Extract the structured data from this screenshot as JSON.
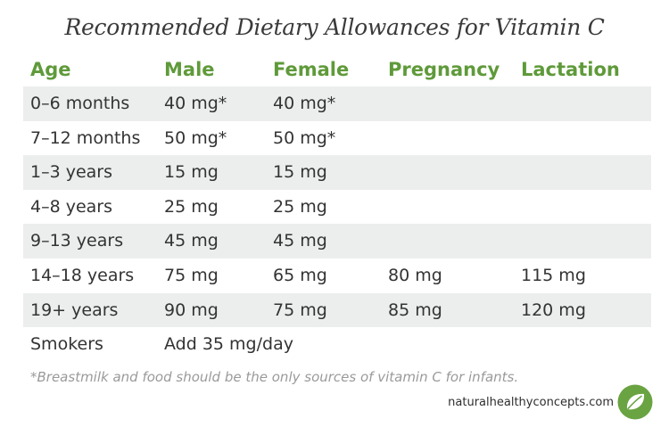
{
  "title": "Recommended Dietary Allowances for Vitamin C",
  "table": {
    "headers": [
      "Age",
      "Male",
      "Female",
      "Pregnancy",
      "Lactation"
    ],
    "rows": [
      [
        "0–6 months",
        "40 mg*",
        "40 mg*",
        "",
        ""
      ],
      [
        "7–12 months",
        "50 mg*",
        "50 mg*",
        "",
        ""
      ],
      [
        "1–3 years",
        "15 mg",
        "15 mg",
        "",
        ""
      ],
      [
        "4–8 years",
        "25 mg",
        "25 mg",
        "",
        ""
      ],
      [
        "9–13 years",
        "45 mg",
        "45 mg",
        "",
        ""
      ],
      [
        "14–18 years",
        "75 mg",
        "65 mg",
        "80 mg",
        "115 mg"
      ],
      [
        "19+ years",
        "90 mg",
        "75 mg",
        "85 mg",
        "120 mg"
      ],
      [
        "Smokers",
        "Add 35 mg/day",
        "",
        "",
        ""
      ]
    ]
  },
  "footnote": "*Breastmilk and food should be the only sources of vitamin C for infants.",
  "brand": {
    "url": "naturalhealthyconcepts.com",
    "logo_icon": "leaf-icon",
    "accent_color": "#5f9a3a",
    "logo_color": "#6aa342"
  }
}
